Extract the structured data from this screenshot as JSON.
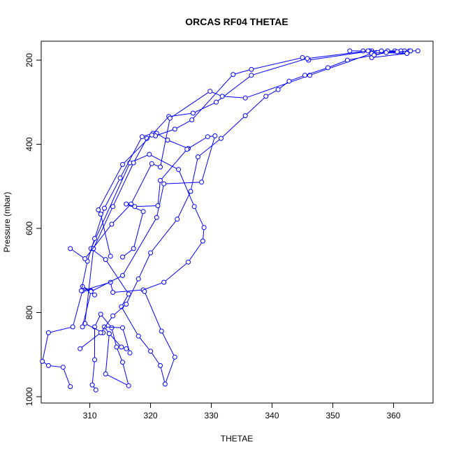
{
  "chart_data": {
    "type": "line",
    "title": "ORCAS RF04 THETAE",
    "xlabel": "THETAE",
    "ylabel": "Pressure (mbar)",
    "xlim": [
      302,
      366.5
    ],
    "ylim": [
      1015,
      155
    ],
    "y_reversed": true,
    "x_ticks": [
      310,
      320,
      330,
      340,
      350,
      360
    ],
    "y_ticks": [
      200,
      400,
      600,
      800,
      1000
    ],
    "grid": false,
    "marker": "open-circle",
    "line_color": "#0000ff",
    "series": [
      {
        "x": [
          306.8,
          305.6,
          303.2,
          302.2,
          303.2,
          307.2,
          308.8,
          310.2,
          308.8,
          310.8
        ],
        "y": [
          976,
          930,
          926,
          916,
          848,
          834,
          748,
          748,
          738,
          758
        ]
      },
      {
        "x": [
          308.8,
          313.4,
          313.8,
          318.8,
          322.2,
          326.2,
          328.6,
          328.8,
          327.2,
          324.6,
          319.8,
          316.6,
          310.2,
          312.6,
          316.4,
          315.2,
          318.0,
          320.0,
          321.6,
          322.4,
          324.0,
          321.8,
          319.0
        ],
        "y": [
          748,
          728,
          752,
          746,
          728,
          680,
          630,
          598,
          548,
          460,
          424,
          444,
          648,
          674,
          756,
          786,
          856,
          892,
          926,
          970,
          906,
          844,
          750
        ]
      },
      {
        "x": [
          311.0,
          310.4,
          310.8,
          310.8,
          311.8,
          313.6,
          314.4,
          315.4,
          316.4,
          312.6,
          313.2
        ],
        "y": [
          984,
          972,
          912,
          834,
          804,
          836,
          882,
          918,
          974,
          946,
          850
        ]
      },
      {
        "x": [
          312.2,
          309.2,
          310.6,
          313.8,
          317.2,
          319.4,
          320.4,
          321.0,
          322.8,
          326.2
        ],
        "y": [
          848,
          826,
          648,
          548,
          444,
          386,
          376,
          374,
          390,
          410
        ]
      },
      {
        "x": [
          316.0,
          315.2,
          313.2,
          312.4,
          315.4,
          316.6
        ],
        "y": [
          886,
          882,
          850,
          834,
          836,
          896
        ]
      },
      {
        "x": [
          308.6,
          309.6,
          310.8,
          312.4,
          315.0,
          318.6,
          320.4,
          320.8,
          324.0,
          326.8,
          333.6,
          336.6,
          345.0,
          346.0,
          356.4,
          355.0,
          352.8,
          356.0,
          357.2,
          361.8,
          364.0,
          362.6
        ],
        "y": [
          748,
          678,
          624,
          552,
          480,
          382,
          374,
          380,
          364,
          342,
          234,
          222,
          194,
          200,
          178,
          178,
          178,
          178,
          182,
          178,
          178,
          178
        ]
      },
      {
        "x": [
          313.4,
          311.8,
          311.4,
          315.4,
          320.2,
          323.0,
          327.0,
          330.8,
          336.6,
          345.8,
          355.8,
          358.0,
          360.2,
          357.4,
          362.2,
          356.4
        ],
        "y": [
          666,
          566,
          556,
          448,
          378,
          334,
          326,
          300,
          236,
          196,
          178,
          178,
          178,
          182,
          184,
          194
        ]
      },
      {
        "x": [
          306.8,
          309.2,
          313.6,
          316.8,
          320.2,
          321.6,
          323.2,
          329.8,
          331.8,
          335.6,
          346.2,
          356.4,
          361.2,
          359.0
        ],
        "y": [
          648,
          672,
          590,
          542,
          446,
          454,
          338,
          274,
          286,
          290,
          236,
          184,
          178,
          178
        ]
      },
      {
        "x": [
          308.8,
          310.2,
          315.4,
          321.0,
          322.2,
          328.4,
          330.6,
          329.4,
          326.0,
          321.6,
          321.2,
          317.4,
          316.0,
          318.8,
          317.2,
          315.4
        ],
        "y": [
          834,
          750,
          712,
          574,
          494,
          490,
          380,
          382,
          412,
          486,
          546,
          548,
          542,
          560,
          648,
          668
        ]
      },
      {
        "x": [
          308.4,
          311.8,
          313.8,
          316.0,
          318.0,
          320.0,
          324.4,
          326.6,
          327.8,
          331.6,
          335.6,
          339.0,
          341.0,
          342.8,
          345.4,
          349.2,
          352.4,
          356.8,
          358.8,
          360.6,
          362.8
        ],
        "y": [
          886,
          848,
          808,
          780,
          720,
          658,
          578,
          512,
          430,
          386,
          332,
          286,
          270,
          250,
          236,
          218,
          200,
          188,
          182,
          180,
          178
        ]
      }
    ]
  }
}
